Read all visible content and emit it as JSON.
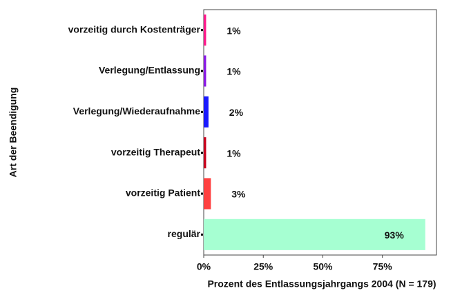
{
  "chart_data": {
    "type": "bar",
    "orientation": "horizontal",
    "xlabel": "Prozent des Entlassungsjahrgangs 2004 (N = 179)",
    "ylabel": "Art der Beendigung",
    "categories": [
      "vorzeitig durch Kostenträger",
      "Verlegung/Entlassung",
      "Verlegung/Wiederaufnahme",
      "vorzeitig Therapeut",
      "vorzeitig Patient",
      "regulär"
    ],
    "values": [
      1,
      1,
      2,
      1,
      3,
      93
    ],
    "value_labels": [
      "1%",
      "1%",
      "2%",
      "1%",
      "3%",
      "93%"
    ],
    "colors": [
      "#ff1a8c",
      "#8a1ae6",
      "#1a1aff",
      "#c8001e",
      "#ff4040",
      "#a6ffd2"
    ],
    "xlim": [
      0,
      97.7
    ],
    "xticks": [
      {
        "value": 0,
        "label": "0%"
      },
      {
        "value": 25,
        "label": "25%"
      },
      {
        "value": 50,
        "label": "50%"
      },
      {
        "value": 75,
        "label": "75%"
      }
    ]
  }
}
